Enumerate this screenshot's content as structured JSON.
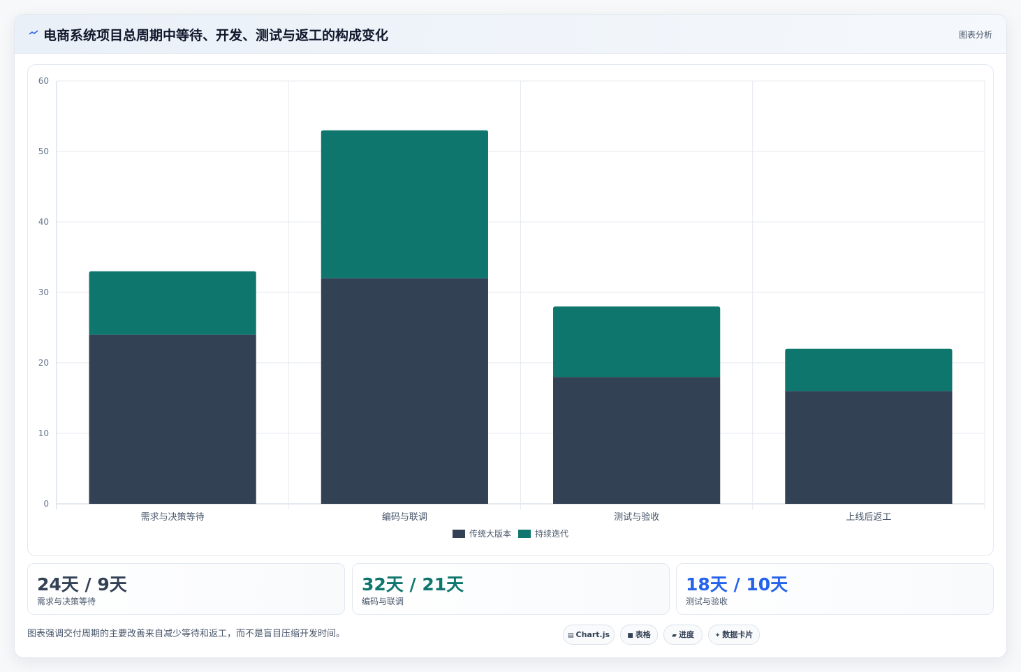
{
  "header": {
    "title": "电商系统项目总周期中等待、开发、测试与返工的构成变化",
    "right_label": "图表分析",
    "icon": "chart-line-icon"
  },
  "chart_data": {
    "type": "bar",
    "stacked": true,
    "categories": [
      "需求与决策等待",
      "编码与联调",
      "测试与验收",
      "上线后返工"
    ],
    "series": [
      {
        "name": "传统大版本",
        "values": [
          24,
          32,
          18,
          16
        ],
        "color": "#334155"
      },
      {
        "name": "持续迭代",
        "values": [
          9,
          21,
          10,
          6
        ],
        "color": "#0f766e"
      }
    ],
    "ylim": [
      0,
      60
    ],
    "yticks": [
      0,
      10,
      20,
      30,
      40,
      50,
      60
    ],
    "grid": true,
    "legend_position": "bottom"
  },
  "stats": [
    {
      "value": "24天 / 9天",
      "label": "需求与决策等待",
      "color": "#334155"
    },
    {
      "value": "32天 / 21天",
      "label": "编码与联调",
      "color": "#0f766e"
    },
    {
      "value": "18天 / 10天",
      "label": "测试与验收",
      "color": "#2563eb"
    }
  ],
  "footer": {
    "note": "图表强调交付周期的主要改善来自减少等待和返工，而不是盲目压缩开发时间。",
    "chips": [
      {
        "label": "Chart.js",
        "icon": "chart-icon"
      },
      {
        "label": "表格",
        "icon": "table-icon"
      },
      {
        "label": "进度",
        "icon": "progress-icon"
      },
      {
        "label": "数据卡片",
        "icon": "sparkle-icon"
      }
    ]
  }
}
